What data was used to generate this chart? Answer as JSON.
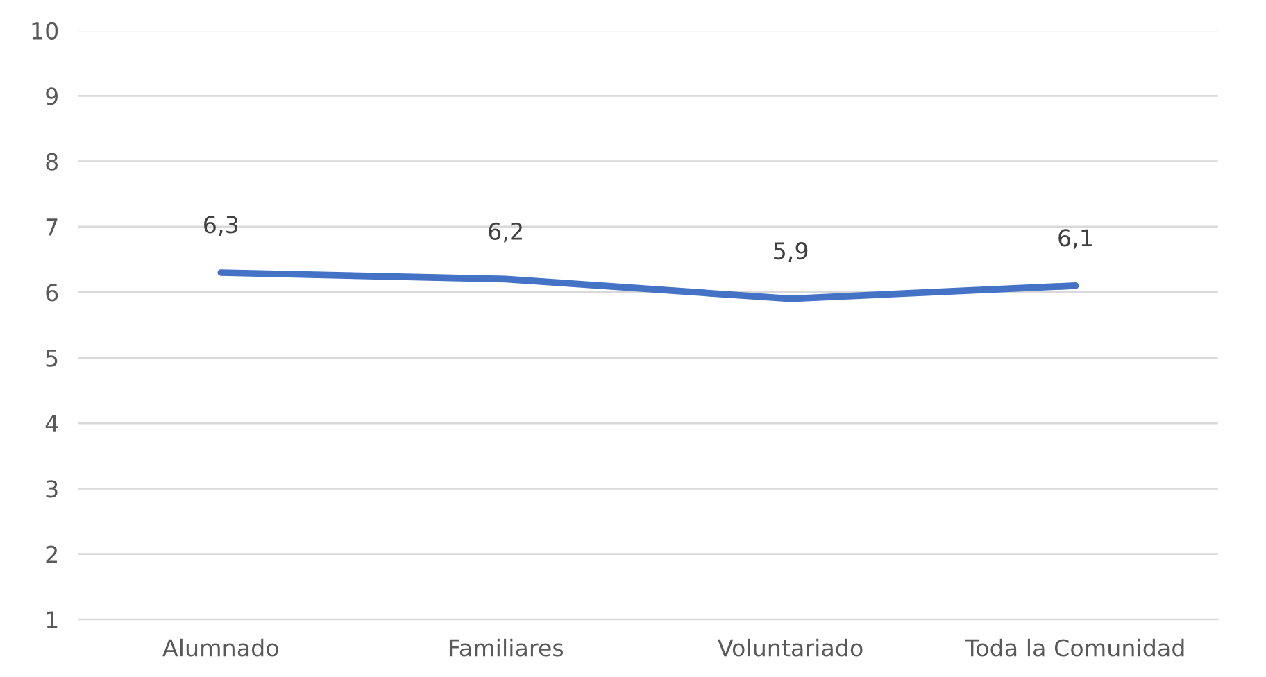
{
  "chart_data": {
    "type": "line",
    "categories": [
      "Alumnado",
      "Familiares",
      "Voluntariado",
      "Toda la Comunidad"
    ],
    "series": [
      {
        "color": "#4472c4",
        "values": [
          6.3,
          6.2,
          5.9,
          6.1
        ],
        "value_labels": [
          "6,3",
          "6,2",
          "5,9",
          "6,1"
        ]
      }
    ],
    "ylim": [
      1,
      10
    ],
    "yticks": [
      1,
      2,
      3,
      4,
      5,
      6,
      7,
      8,
      9,
      10
    ],
    "grid": "y",
    "marker": "none",
    "line_style": "solid"
  }
}
